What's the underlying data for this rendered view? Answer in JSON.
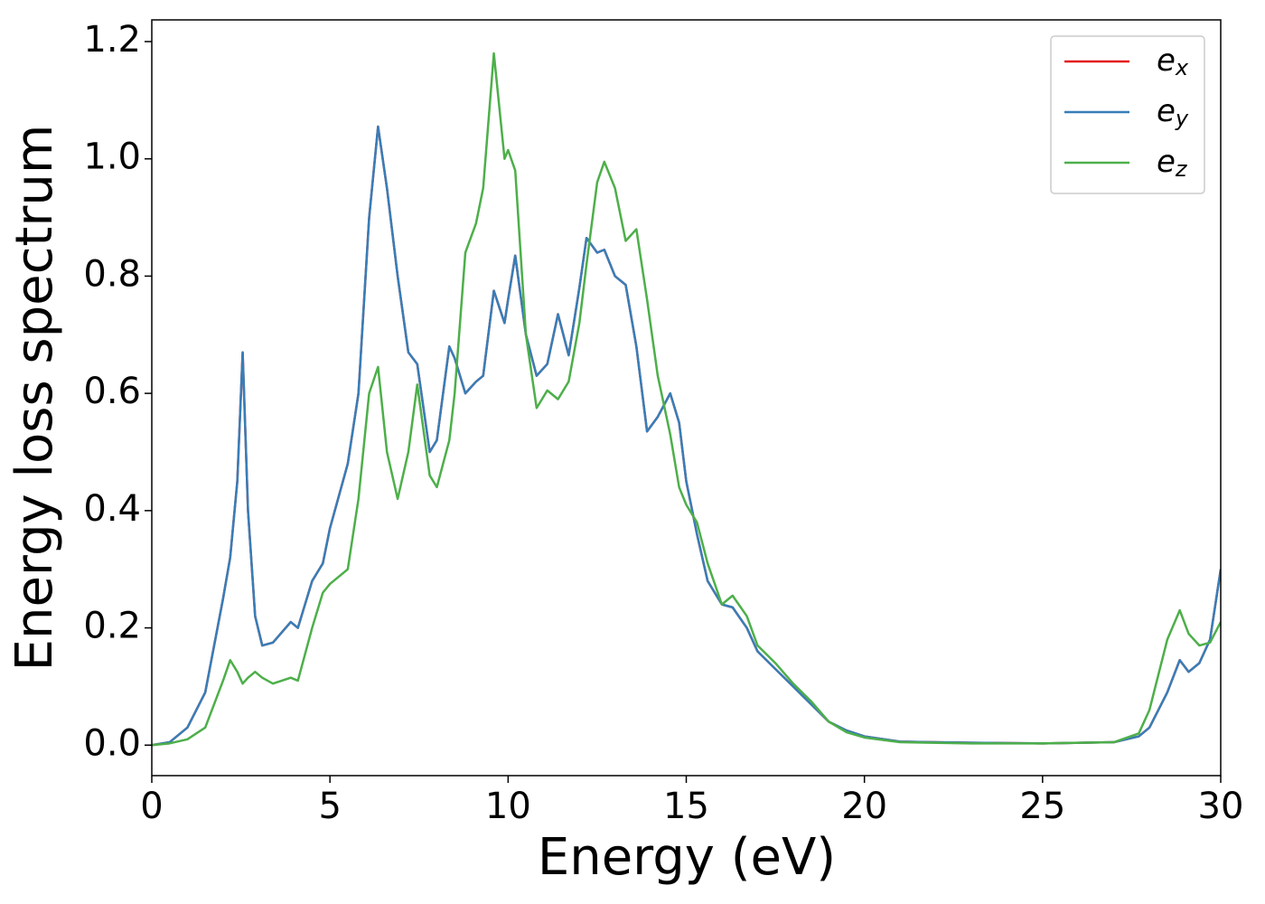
{
  "chart_data": {
    "type": "line",
    "xlabel": "Energy (eV)",
    "ylabel": "Energy loss spectrum",
    "x": [
      0,
      0.5,
      1.0,
      1.5,
      2.0,
      2.2,
      2.4,
      2.55,
      2.7,
      2.9,
      3.1,
      3.4,
      3.9,
      4.1,
      4.5,
      4.8,
      5.0,
      5.5,
      5.8,
      6.1,
      6.35,
      6.6,
      6.9,
      7.2,
      7.45,
      7.8,
      8.0,
      8.35,
      8.5,
      8.8,
      9.1,
      9.3,
      9.6,
      9.9,
      10.0,
      10.2,
      10.5,
      10.8,
      11.1,
      11.4,
      11.7,
      12.0,
      12.2,
      12.5,
      12.7,
      13.0,
      13.3,
      13.6,
      13.9,
      14.2,
      14.55,
      14.8,
      15.0,
      15.3,
      15.6,
      16.0,
      16.3,
      16.7,
      17.0,
      17.5,
      18.0,
      18.5,
      19.0,
      19.5,
      20.0,
      21,
      23,
      25,
      27,
      27.7,
      28.0,
      28.5,
      28.85,
      29.1,
      29.4,
      29.7,
      30
    ],
    "series": [
      {
        "name": "ex",
        "color": "#e41a1c",
        "values": [
          0,
          0.005,
          0.03,
          0.09,
          0.25,
          0.32,
          0.45,
          0.67,
          0.4,
          0.22,
          0.17,
          0.175,
          0.21,
          0.2,
          0.28,
          0.31,
          0.37,
          0.48,
          0.6,
          0.9,
          1.055,
          0.95,
          0.8,
          0.67,
          0.65,
          0.5,
          0.52,
          0.68,
          0.66,
          0.6,
          0.62,
          0.63,
          0.775,
          0.72,
          0.76,
          0.835,
          0.7,
          0.63,
          0.65,
          0.735,
          0.665,
          0.78,
          0.865,
          0.84,
          0.845,
          0.8,
          0.785,
          0.68,
          0.535,
          0.56,
          0.6,
          0.55,
          0.45,
          0.36,
          0.28,
          0.24,
          0.235,
          0.2,
          0.16,
          0.13,
          0.1,
          0.07,
          0.04,
          0.025,
          0.015,
          0.006,
          0.004,
          0.003,
          0.005,
          0.015,
          0.03,
          0.09,
          0.145,
          0.125,
          0.14,
          0.18,
          0.3
        ]
      },
      {
        "name": "ey",
        "color": "#377eb8",
        "values": [
          0,
          0.005,
          0.03,
          0.09,
          0.25,
          0.32,
          0.45,
          0.67,
          0.4,
          0.22,
          0.17,
          0.175,
          0.21,
          0.2,
          0.28,
          0.31,
          0.37,
          0.48,
          0.6,
          0.9,
          1.055,
          0.95,
          0.8,
          0.67,
          0.65,
          0.5,
          0.52,
          0.68,
          0.66,
          0.6,
          0.62,
          0.63,
          0.775,
          0.72,
          0.76,
          0.835,
          0.7,
          0.63,
          0.65,
          0.735,
          0.665,
          0.78,
          0.865,
          0.84,
          0.845,
          0.8,
          0.785,
          0.68,
          0.535,
          0.56,
          0.6,
          0.55,
          0.45,
          0.36,
          0.28,
          0.24,
          0.235,
          0.2,
          0.16,
          0.13,
          0.1,
          0.07,
          0.04,
          0.025,
          0.015,
          0.006,
          0.004,
          0.003,
          0.005,
          0.015,
          0.03,
          0.09,
          0.145,
          0.125,
          0.14,
          0.18,
          0.3
        ]
      },
      {
        "name": "ez",
        "color": "#4daf4a",
        "values": [
          0,
          0.003,
          0.01,
          0.03,
          0.11,
          0.145,
          0.125,
          0.105,
          0.115,
          0.125,
          0.115,
          0.105,
          0.115,
          0.11,
          0.2,
          0.26,
          0.275,
          0.3,
          0.42,
          0.6,
          0.645,
          0.5,
          0.42,
          0.5,
          0.615,
          0.46,
          0.44,
          0.52,
          0.6,
          0.84,
          0.89,
          0.95,
          1.18,
          1.0,
          1.015,
          0.98,
          0.7,
          0.575,
          0.605,
          0.59,
          0.62,
          0.72,
          0.82,
          0.96,
          0.995,
          0.95,
          0.86,
          0.88,
          0.76,
          0.63,
          0.53,
          0.44,
          0.41,
          0.38,
          0.31,
          0.24,
          0.255,
          0.22,
          0.17,
          0.14,
          0.105,
          0.075,
          0.04,
          0.022,
          0.013,
          0.005,
          0.003,
          0.003,
          0.005,
          0.02,
          0.06,
          0.18,
          0.23,
          0.19,
          0.17,
          0.175,
          0.21
        ]
      }
    ],
    "xlim": [
      0,
      30
    ],
    "xticks": [
      0,
      5,
      10,
      15,
      20,
      25,
      30
    ],
    "ylim": [
      -0.052,
      1.237
    ],
    "yticks": [
      {
        "value": 0,
        "label": "0.0"
      },
      0.2,
      0.4,
      0.6,
      0.8,
      {
        "value": 1,
        "label": "1.0"
      },
      1.2
    ],
    "grid": false,
    "legend": "upper right"
  }
}
